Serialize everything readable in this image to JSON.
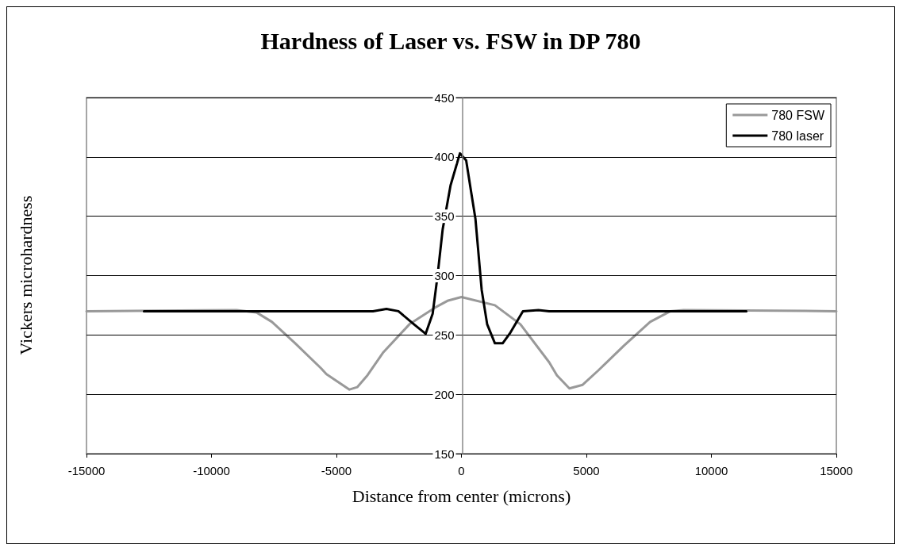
{
  "chart_data": {
    "type": "line",
    "title": "Hardness of Laser vs. FSW in DP 780",
    "xlabel": "Distance from center (microns)",
    "ylabel": "Vickers microhardness",
    "xlim": [
      -15000,
      15000
    ],
    "xticks": [
      -15000,
      -10000,
      -5000,
      0,
      5000,
      10000,
      15000
    ],
    "ylim": [
      150,
      450
    ],
    "yticks": [
      150,
      200,
      250,
      300,
      350,
      400,
      450
    ],
    "grid": "y",
    "legend": "top right",
    "marker": "none",
    "line_style": "solid",
    "series": [
      {
        "name": "780 FSW",
        "color": "#999999",
        "x": [
          -15000,
          -9000,
          -8200,
          -7580,
          -6650,
          -5620,
          -5400,
          -4480,
          -4170,
          -3760,
          -3140,
          -2080,
          -1060,
          -530,
          0,
          1340,
          2360,
          3510,
          3820,
          4320,
          4850,
          5470,
          6500,
          7550,
          8360,
          8890,
          15000
        ],
        "values": [
          270,
          271,
          269,
          261,
          243,
          222,
          217,
          204,
          206,
          216,
          235,
          259,
          273,
          279,
          282,
          275,
          259,
          227,
          216,
          205,
          208,
          220,
          241,
          261,
          270,
          271,
          270
        ]
      },
      {
        "name": "780 laser",
        "color": "#000000",
        "x": [
          -12700,
          -3540,
          -3000,
          -2520,
          -1900,
          -1430,
          -1150,
          -960,
          -750,
          -435,
          -60,
          190,
          400,
          560,
          810,
          1030,
          1340,
          1650,
          1960,
          2460,
          3080,
          3510,
          11400
        ],
        "values": [
          270,
          270,
          272,
          270,
          259,
          251,
          268,
          299,
          339,
          376,
          403,
          397,
          369,
          348,
          288,
          259,
          243,
          243,
          252,
          270,
          271,
          270,
          270
        ]
      }
    ]
  }
}
